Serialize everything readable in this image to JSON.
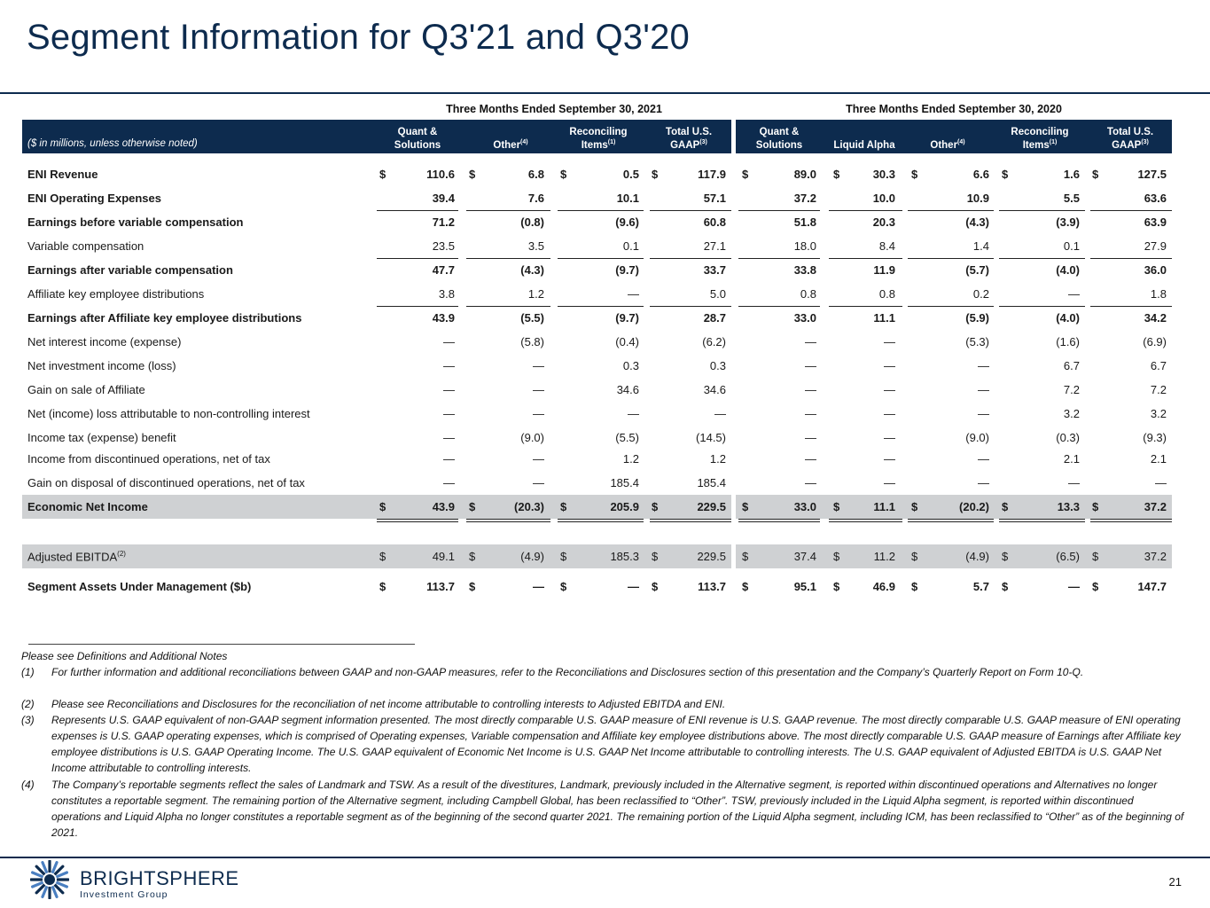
{
  "title": "Segment Information for Q3'21 and Q3'20",
  "periods": [
    "Three Months Ended September 30, 2021",
    "Three Months Ended September 30, 2020"
  ],
  "units_note": "($ in millions, unless otherwise noted)",
  "columns": [
    {
      "l1": "Quant &",
      "l2": "Solutions",
      "sup": ""
    },
    {
      "l1": "",
      "l2": "Other",
      "sup": "(4)"
    },
    {
      "l1": "Reconciling",
      "l2": "Items",
      "sup": "(1)"
    },
    {
      "l1": "Total U.S.",
      "l2": "GAAP",
      "sup": "(3)"
    },
    {
      "l1": "Quant &",
      "l2": "Solutions",
      "sup": ""
    },
    {
      "l1": "",
      "l2": "Liquid Alpha",
      "sup": ""
    },
    {
      "l1": "",
      "l2": "Other",
      "sup": "(4)"
    },
    {
      "l1": "Reconciling",
      "l2": "Items",
      "sup": "(1)"
    },
    {
      "l1": "Total U.S.",
      "l2": "GAAP",
      "sup": "(3)"
    }
  ],
  "currency_symbol": "$",
  "rows": [
    {
      "label": "ENI Revenue",
      "sup": "",
      "bold": true,
      "dollar": true,
      "values": [
        "110.6",
        "6.8",
        "0.5",
        "117.9",
        "89.0",
        "30.3",
        "6.6",
        "1.6",
        "127.5"
      ]
    },
    {
      "label": "ENI Operating Expenses",
      "sup": "",
      "bold": true,
      "dollar": false,
      "values": [
        "39.4",
        "7.6",
        "10.1",
        "57.1",
        "37.2",
        "10.0",
        "10.9",
        "5.5",
        "63.6"
      ]
    },
    {
      "label": "Earnings before variable compensation",
      "sup": "",
      "bold": true,
      "dollar": false,
      "values": [
        "71.2",
        "(0.8)",
        "(9.6)",
        "60.8",
        "51.8",
        "20.3",
        "(4.3)",
        "(3.9)",
        "63.9"
      ]
    },
    {
      "label": "Variable compensation",
      "sup": "",
      "bold": false,
      "dollar": false,
      "values": [
        "23.5",
        "3.5",
        "0.1",
        "27.1",
        "18.0",
        "8.4",
        "1.4",
        "0.1",
        "27.9"
      ]
    },
    {
      "label": "Earnings after variable compensation",
      "sup": "",
      "bold": true,
      "dollar": false,
      "values": [
        "47.7",
        "(4.3)",
        "(9.7)",
        "33.7",
        "33.8",
        "11.9",
        "(5.7)",
        "(4.0)",
        "36.0"
      ]
    },
    {
      "label": "Affiliate key employee distributions",
      "sup": "",
      "bold": false,
      "dollar": false,
      "values": [
        "3.8",
        "1.2",
        "—",
        "5.0",
        "0.8",
        "0.8",
        "0.2",
        "—",
        "1.8"
      ]
    },
    {
      "label": "Earnings after Affiliate key employee distributions",
      "sup": "",
      "bold": true,
      "dollar": false,
      "values": [
        "43.9",
        "(5.5)",
        "(9.7)",
        "28.7",
        "33.0",
        "11.1",
        "(5.9)",
        "(4.0)",
        "34.2"
      ]
    },
    {
      "label": "Net interest income (expense)",
      "sup": "",
      "bold": false,
      "dollar": false,
      "values": [
        "—",
        "(5.8)",
        "(0.4)",
        "(6.2)",
        "—",
        "—",
        "(5.3)",
        "(1.6)",
        "(6.9)"
      ]
    },
    {
      "label": "Net investment income (loss)",
      "sup": "",
      "bold": false,
      "dollar": false,
      "values": [
        "—",
        "—",
        "0.3",
        "0.3",
        "—",
        "—",
        "—",
        "6.7",
        "6.7"
      ]
    },
    {
      "label": "Gain on sale of Affiliate",
      "sup": "",
      "bold": false,
      "dollar": false,
      "values": [
        "—",
        "—",
        "34.6",
        "34.6",
        "—",
        "—",
        "—",
        "7.2",
        "7.2"
      ]
    },
    {
      "label": "Net (income) loss attributable to non-controlling interest",
      "sup": "",
      "bold": false,
      "dollar": false,
      "values": [
        "—",
        "—",
        "—",
        "—",
        "—",
        "—",
        "—",
        "3.2",
        "3.2"
      ]
    },
    {
      "label": "Income tax (expense) benefit",
      "sup": "",
      "bold": false,
      "dollar": false,
      "values": [
        "—",
        "(9.0)",
        "(5.5)",
        "(14.5)",
        "—",
        "—",
        "(9.0)",
        "(0.3)",
        "(9.3)"
      ]
    },
    {
      "label": "Income from discontinued operations, net of tax",
      "sup": "",
      "bold": false,
      "dollar": false,
      "values": [
        "—",
        "—",
        "1.2",
        "1.2",
        "—",
        "—",
        "—",
        "2.1",
        "2.1"
      ]
    },
    {
      "label": "Gain on disposal of discontinued operations, net of tax",
      "sup": "",
      "bold": false,
      "dollar": false,
      "values": [
        "—",
        "—",
        "185.4",
        "185.4",
        "—",
        "—",
        "—",
        "—",
        "—"
      ]
    },
    {
      "label": "Economic Net Income",
      "sup": "",
      "bold": true,
      "dollar": true,
      "shaded": true,
      "values": [
        "43.9",
        "(20.3)",
        "205.9",
        "229.5",
        "33.0",
        "11.1",
        "(20.2)",
        "13.3",
        "37.2"
      ]
    },
    {
      "label": "Adjusted EBITDA",
      "sup": "(2)",
      "bold": false,
      "dollar": true,
      "shaded": true,
      "values": [
        "49.1",
        "(4.9)",
        "185.3",
        "229.5",
        "37.4",
        "11.2",
        "(4.9)",
        "(6.5)",
        "37.2"
      ]
    },
    {
      "label": "Segment Assets Under Management ($b)",
      "sup": "",
      "bold": true,
      "dollar": true,
      "values": [
        "113.7",
        "—",
        "—",
        "113.7",
        "95.1",
        "46.9",
        "5.7",
        "—",
        "147.7"
      ]
    }
  ],
  "footnotes": {
    "intro": "Please see Definitions and Additional Notes",
    "items": [
      {
        "num": "(1)",
        "text": "For further information and additional reconciliations between GAAP and non-GAAP measures, refer to the Reconciliations and Disclosures section of this presentation and the Company’s Quarterly Report on Form 10-Q."
      },
      {
        "num": "(2)",
        "text": "Please see Reconciliations and Disclosures for the reconciliation of net income attributable to controlling interests to Adjusted EBITDA and ENI."
      },
      {
        "num": "(3)",
        "text": "Represents U.S. GAAP equivalent of non-GAAP segment information presented. The most directly comparable U.S. GAAP measure of ENI revenue is U.S. GAAP revenue. The most directly comparable U.S. GAAP measure of ENI operating expenses is U.S. GAAP operating expenses, which is comprised of Operating expenses, Variable compensation and Affiliate key employee distributions above.  The most directly comparable U.S. GAAP measure of Earnings after Affiliate key employee distributions is U.S. GAAP Operating Income. The U.S. GAAP equivalent of Economic Net Income is U.S. GAAP Net Income attributable to controlling interests. The U.S. GAAP equivalent of Adjusted EBITDA is U.S. GAAP Net Income attributable to controlling interests."
      },
      {
        "num": "(4)",
        "text": "The Company’s reportable segments reflect the sales of Landmark and TSW. As a result of the divestitures, Landmark, previously included in the Alternative segment, is reported within discontinued operations and Alternatives no longer constitutes a reportable segment. The remaining portion of the Alternative segment, including Campbell Global, has been reclassified to “Other”. TSW, previously included in the Liquid Alpha segment, is reported within discontinued operations and Liquid Alpha no longer constitutes a reportable segment as of the beginning of the second quarter 2021. The remaining portion of the Liquid Alpha segment, including ICM, has been reclassified to “Other” as of the beginning of 2021."
      }
    ]
  },
  "brand": {
    "name": "BRIGHTSPHERE",
    "sub": "Investment Group",
    "logo_icon": "sunburst-logo-icon",
    "color": "#0d2b4e"
  },
  "page_number": "21"
}
